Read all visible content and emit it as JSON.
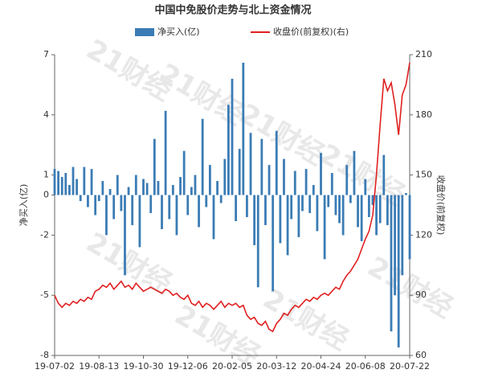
{
  "chart_data": {
    "type": "bar_line",
    "title": "中国中免股价走势与北上资金情况",
    "watermark": "21财经",
    "y_label": "净买入(亿)",
    "y2_label": "收盘价(前复权)",
    "categories": [
      "19-07-02",
      null,
      null,
      null,
      null,
      null,
      null,
      null,
      null,
      null,
      null,
      null,
      "19-08-13",
      null,
      null,
      null,
      null,
      null,
      null,
      null,
      null,
      null,
      null,
      null,
      "19-10-30",
      null,
      null,
      null,
      null,
      null,
      null,
      null,
      null,
      null,
      null,
      null,
      "19-12-06",
      null,
      null,
      null,
      null,
      null,
      null,
      null,
      null,
      null,
      null,
      null,
      "20-02-05",
      null,
      null,
      null,
      null,
      null,
      null,
      null,
      null,
      null,
      null,
      null,
      "20-03-12",
      null,
      null,
      null,
      null,
      null,
      null,
      null,
      null,
      null,
      null,
      null,
      "20-04-24",
      null,
      null,
      null,
      null,
      null,
      null,
      null,
      null,
      null,
      null,
      null,
      "20-06-08",
      null,
      null,
      null,
      null,
      null,
      null,
      null,
      null,
      null,
      null,
      null,
      "20-07-22"
    ],
    "series": [
      {
        "name": "净买入(亿)",
        "color": "#3b7cb5",
        "values": [
          1.3,
          1.2,
          0.9,
          1.1,
          0.5,
          1.4,
          0.8,
          -0.3,
          1.4,
          -0.6,
          1.3,
          -1.0,
          -0.3,
          0.7,
          -2.0,
          0.3,
          -1.2,
          1.0,
          -0.8,
          -4.0,
          0.4,
          -1.5,
          1.0,
          -2.6,
          0.8,
          0.6,
          -0.9,
          2.8,
          0.7,
          -1.7,
          4.2,
          -1.2,
          0.5,
          -2.0,
          0.9,
          2.2,
          -1.0,
          0.4,
          1.0,
          -1.6,
          3.8,
          -0.6,
          1.5,
          -2.2,
          0.7,
          -0.4,
          1.8,
          4.5,
          5.8,
          -1.3,
          2.3,
          6.6,
          -1.1,
          3.1,
          -2.5,
          -4.6,
          2.8,
          -1.5,
          1.5,
          -4.8,
          3.2,
          -2.4,
          1.8,
          -3.0,
          -1.2,
          1.2,
          -2.1,
          -0.8,
          1.3,
          -0.9,
          0.5,
          -1.8,
          2.1,
          -3.2,
          -0.6,
          1.1,
          -1.0,
          -1.4,
          -2.0,
          1.5,
          -0.4,
          2.2,
          -1.6,
          -2.3,
          0.8,
          -1.1,
          -0.5,
          -2.0,
          -1.4,
          2.0,
          -1.5,
          -6.8,
          -5.0,
          -7.6,
          -4.0,
          0.1,
          -3.2
        ]
      },
      {
        "name": "收盘价(前复权)(右)",
        "color": "#e02020",
        "axis": "y2",
        "values": [
          90,
          86,
          84,
          86,
          85,
          87,
          86,
          88,
          87,
          89,
          88,
          92,
          93,
          95,
          94,
          96,
          93,
          95,
          97,
          94,
          95,
          93,
          96,
          94,
          92,
          93,
          94,
          93,
          92,
          91,
          93,
          92,
          90,
          91,
          89,
          88,
          90,
          86,
          85,
          87,
          84,
          86,
          85,
          83,
          85,
          87,
          84,
          86,
          85,
          86,
          84,
          85,
          80,
          78,
          79,
          76,
          75,
          77,
          73,
          72,
          76,
          78,
          81,
          80,
          83,
          85,
          84,
          86,
          88,
          87,
          89,
          88,
          90,
          91,
          90,
          92,
          94,
          93,
          97,
          100,
          102,
          105,
          108,
          113,
          118,
          122,
          130,
          150,
          175,
          198,
          192,
          196,
          185,
          170,
          190,
          195,
          206
        ]
      }
    ],
    "ylim": [
      -8,
      7
    ],
    "yticks": [
      -8,
      -5,
      -2,
      0,
      1,
      4,
      7
    ],
    "y2lim": [
      60,
      210
    ],
    "y2ticks": [
      60,
      90,
      120,
      150,
      180,
      210
    ],
    "grid": false
  }
}
